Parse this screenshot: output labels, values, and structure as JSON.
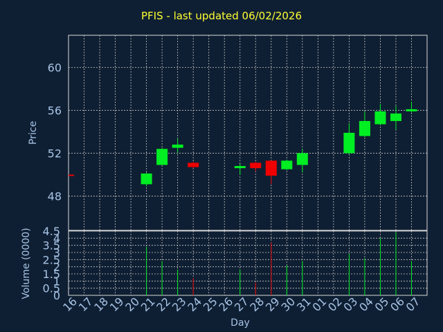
{
  "title": "PFIS - last updated 06/02/2026",
  "colors": {
    "background": "#0f1f33",
    "title": "#ffff33",
    "axis_text": "#a7c4e6",
    "frame": "#d9d9d9",
    "grid": "#c8c8c8",
    "up": "#00ee22",
    "down": "#ee0000"
  },
  "chart_data": [
    {
      "type": "candlestick",
      "ylabel": "Price",
      "ylim": [
        44.8,
        63.0
      ],
      "yticks": [
        "48",
        "52",
        "56",
        "60"
      ],
      "grid": true,
      "x": [
        "16",
        "17",
        "18",
        "19",
        "20",
        "21",
        "22",
        "23",
        "24",
        "25",
        "26",
        "27",
        "28",
        "29",
        "30",
        "31",
        "01",
        "02",
        "03",
        "04",
        "05",
        "06",
        "07"
      ],
      "candles": [
        {
          "x": "16",
          "open": 50.0,
          "high": 50.0,
          "low": 50.0,
          "close": 50.0,
          "direction": "down"
        },
        {
          "x": "20",
          "open": 49.1,
          "high": 50.2,
          "low": 48.9,
          "close": 50.1,
          "direction": "up"
        },
        {
          "x": "21",
          "open": 50.9,
          "high": 52.5,
          "low": 50.9,
          "close": 52.4,
          "direction": "up"
        },
        {
          "x": "22",
          "open": 52.5,
          "high": 53.4,
          "low": 52.0,
          "close": 52.8,
          "direction": "up"
        },
        {
          "x": "23",
          "open": 51.1,
          "high": 51.2,
          "low": 50.6,
          "close": 50.7,
          "direction": "down"
        },
        {
          "x": "26",
          "open": 50.6,
          "high": 51.0,
          "low": 50.0,
          "close": 50.8,
          "direction": "up"
        },
        {
          "x": "27",
          "open": 51.1,
          "high": 51.2,
          "low": 50.3,
          "close": 50.6,
          "direction": "down"
        },
        {
          "x": "28",
          "open": 51.3,
          "high": 51.3,
          "low": 49.1,
          "close": 49.9,
          "direction": "down"
        },
        {
          "x": "29",
          "open": 50.5,
          "high": 51.4,
          "low": 50.4,
          "close": 51.3,
          "direction": "up"
        },
        {
          "x": "30",
          "open": 50.9,
          "high": 52.4,
          "low": 50.2,
          "close": 52.0,
          "direction": "up"
        },
        {
          "x": "02",
          "open": 52.0,
          "high": 54.8,
          "low": 51.9,
          "close": 53.9,
          "direction": "up"
        },
        {
          "x": "03",
          "open": 53.6,
          "high": 55.9,
          "low": 53.5,
          "close": 55.0,
          "direction": "up"
        },
        {
          "x": "04",
          "open": 54.7,
          "high": 56.6,
          "low": 54.6,
          "close": 55.9,
          "direction": "up"
        },
        {
          "x": "05",
          "open": 55.0,
          "high": 56.4,
          "low": 54.2,
          "close": 55.7,
          "direction": "up"
        },
        {
          "x": "06",
          "open": 55.9,
          "high": 56.8,
          "low": 55.8,
          "close": 56.1,
          "direction": "up"
        }
      ]
    },
    {
      "type": "bar",
      "ylabel": "Volume (0000)",
      "xlabel": "Day",
      "ylim": [
        0,
        4.5
      ],
      "yticks": [
        "0",
        "0.5",
        "1",
        "1.5",
        "2",
        "2.5",
        "3",
        "3.5",
        "4",
        "4.5"
      ],
      "x": [
        "16",
        "17",
        "18",
        "19",
        "20",
        "21",
        "22",
        "23",
        "24",
        "25",
        "26",
        "27",
        "28",
        "29",
        "30",
        "31",
        "01",
        "02",
        "03",
        "04",
        "05",
        "06",
        "07"
      ],
      "bars": [
        {
          "x": "20",
          "value": 3.4,
          "direction": "up"
        },
        {
          "x": "21",
          "value": 2.4,
          "direction": "up"
        },
        {
          "x": "22",
          "value": 1.8,
          "direction": "up"
        },
        {
          "x": "23",
          "value": 1.2,
          "direction": "down"
        },
        {
          "x": "26",
          "value": 1.8,
          "direction": "up"
        },
        {
          "x": "27",
          "value": 0.9,
          "direction": "down"
        },
        {
          "x": "28",
          "value": 3.7,
          "direction": "down"
        },
        {
          "x": "29",
          "value": 2.1,
          "direction": "up"
        },
        {
          "x": "30",
          "value": 2.4,
          "direction": "up"
        },
        {
          "x": "02",
          "value": 2.9,
          "direction": "up"
        },
        {
          "x": "03",
          "value": 2.6,
          "direction": "up"
        },
        {
          "x": "04",
          "value": 4.0,
          "direction": "up"
        },
        {
          "x": "05",
          "value": 4.4,
          "direction": "up"
        },
        {
          "x": "06",
          "value": 2.4,
          "direction": "up"
        }
      ]
    }
  ]
}
